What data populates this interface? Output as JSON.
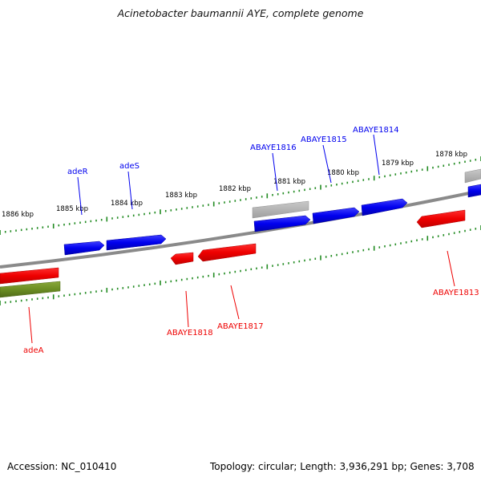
{
  "title": "Acinetobacter baumannii AYE, complete genome",
  "footer": {
    "accession": "Accession: NC_010410",
    "summary": "Topology: circular; Length: 3,936,291 bp; Genes: 3,708"
  },
  "colors": {
    "forward_gene": "#0000ee",
    "reverse_gene": "#ee0000",
    "other_forward": "#aaaaaa",
    "other_reverse": "#6b8e23",
    "ruler": "#228b22",
    "backbone": "#888888"
  },
  "kbp_ticks": [
    "1886 kbp",
    "1885 kbp",
    "1884 kbp",
    "1883 kbp",
    "1882 kbp",
    "1881 kbp",
    "1880 kbp",
    "1879 kbp",
    "1878 kbp"
  ],
  "gene_labels": {
    "top": [
      "adeR",
      "adeS",
      "ABAYE1816",
      "ABAYE1815",
      "ABAYE1814"
    ],
    "bottom": [
      "adeA",
      "ABAYE1818",
      "ABAYE1817",
      "ABAYE1813"
    ]
  }
}
